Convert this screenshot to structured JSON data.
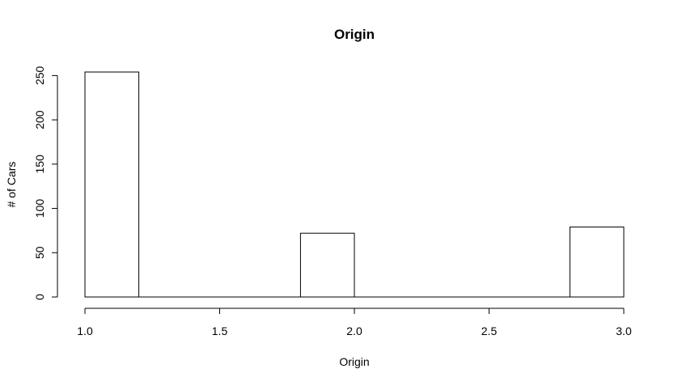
{
  "chart_data": {
    "type": "bar",
    "subtype": "histogram",
    "title": "Origin",
    "xlabel": "Origin",
    "ylabel": "# of Cars",
    "bins": [
      {
        "x0": 1.0,
        "x1": 1.2,
        "count": 254
      },
      {
        "x0": 1.2,
        "x1": 1.4,
        "count": 0
      },
      {
        "x0": 1.4,
        "x1": 1.6,
        "count": 0
      },
      {
        "x0": 1.6,
        "x1": 1.8,
        "count": 0
      },
      {
        "x0": 1.8,
        "x1": 2.0,
        "count": 72
      },
      {
        "x0": 2.0,
        "x1": 2.2,
        "count": 0
      },
      {
        "x0": 2.2,
        "x1": 2.4,
        "count": 0
      },
      {
        "x0": 2.4,
        "x1": 2.6,
        "count": 0
      },
      {
        "x0": 2.6,
        "x1": 2.8,
        "count": 0
      },
      {
        "x0": 2.8,
        "x1": 3.0,
        "count": 79
      }
    ],
    "xlim": [
      1.0,
      3.0
    ],
    "ylim": [
      0,
      254
    ],
    "xticks": [
      "1.0",
      "1.5",
      "2.0",
      "2.5",
      "3.0"
    ],
    "yticks": [
      "0",
      "50",
      "100",
      "150",
      "200",
      "250"
    ],
    "grid": false,
    "colors": {
      "bar_fill": "#ffffff",
      "bar_stroke": "#000000",
      "axis": "#000000"
    }
  }
}
